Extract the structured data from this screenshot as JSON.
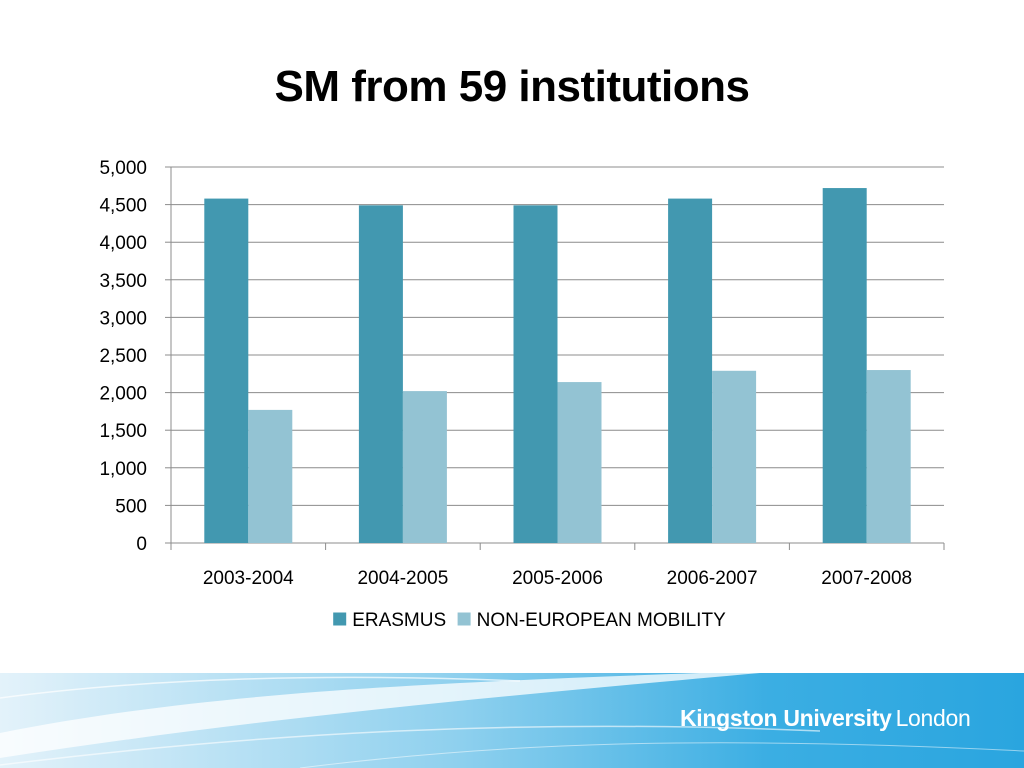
{
  "slide": {
    "title": "SM from 59 institutions"
  },
  "brand": {
    "name": "Kingston University",
    "city": "London"
  },
  "colors": {
    "erasmus": "#4298B0",
    "non_european": "#93C3D3",
    "gridline": "#8C8C8C",
    "footer_band": "#3BAEE3"
  },
  "chart_data": {
    "type": "bar",
    "categories": [
      "2003-2004",
      "2004-2005",
      "2005-2006",
      "2006-2007",
      "2007-2008"
    ],
    "series": [
      {
        "name": "ERASMUS",
        "values": [
          4580,
          4490,
          4490,
          4580,
          4720
        ]
      },
      {
        "name": "NON-EUROPEAN MOBILITY",
        "values": [
          1770,
          2020,
          2140,
          2290,
          2300
        ]
      }
    ],
    "y_ticks": [
      "0",
      "500",
      "1,000",
      "1,500",
      "2,000",
      "2,500",
      "3,000",
      "3,500",
      "4,000",
      "4,500",
      "5,000"
    ],
    "ylim": [
      0,
      5000
    ],
    "ytick_step": 500,
    "grid": true,
    "legend_position": "bottom"
  }
}
